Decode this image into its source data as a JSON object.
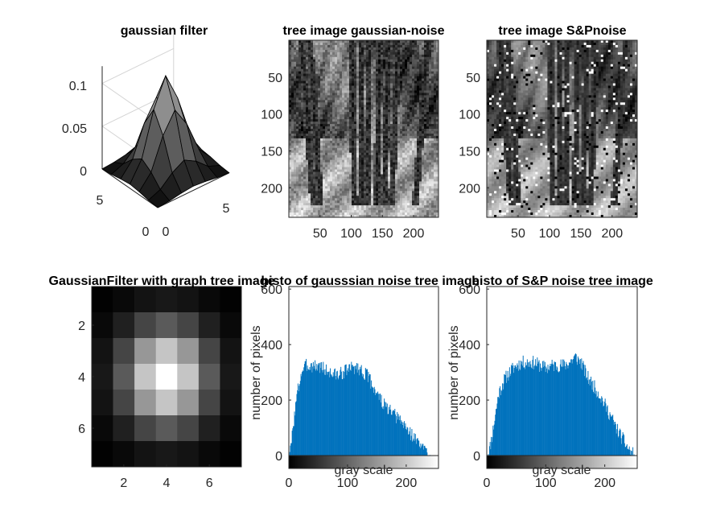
{
  "figure": {
    "background": "#ffffff",
    "axis_color": "#262626",
    "bar_color": "#0072bd"
  },
  "chart_data": [
    {
      "type": "surface",
      "title": "gaussian filter",
      "z_ticks": [
        "0",
        "0.05",
        "0.1"
      ],
      "x_ticks": [
        "5"
      ],
      "y_ticks": [
        "0",
        "5"
      ],
      "x_origin_label": "0",
      "zlim": [
        0,
        0.12
      ],
      "kernel_size": 7,
      "sigma": 1.2
    },
    {
      "type": "image",
      "title": "tree image gaussian-noise",
      "x_ticks": [
        "50",
        "100",
        "150",
        "200"
      ],
      "y_ticks": [
        "50",
        "100",
        "150",
        "200"
      ],
      "xlim": [
        0,
        240
      ],
      "ylim": [
        0,
        240
      ]
    },
    {
      "type": "image",
      "title": "tree image S&Pnoise",
      "x_ticks": [
        "50",
        "100",
        "150",
        "200"
      ],
      "y_ticks": [
        "50",
        "100",
        "150",
        "200"
      ],
      "xlim": [
        0,
        240
      ],
      "ylim": [
        0,
        240
      ]
    },
    {
      "type": "heatmap",
      "title": "GaussianFilter with graph tree image",
      "x_ticks": [
        "2",
        "4",
        "6"
      ],
      "y_ticks": [
        "2",
        "4",
        "6"
      ],
      "size": 7,
      "sigma": 1.2
    },
    {
      "type": "bar",
      "title": "histo of gausssian noise tree image",
      "xlabel": "gray scale",
      "ylabel": "number of pixels",
      "x_ticks": [
        "0",
        "100",
        "200"
      ],
      "y_ticks": [
        "0",
        "200",
        "400",
        "600"
      ],
      "xlim": [
        0,
        255
      ],
      "ylim": [
        0,
        620
      ],
      "bins": 255,
      "envelope": [
        [
          0,
          0
        ],
        [
          3,
          20
        ],
        [
          8,
          120
        ],
        [
          15,
          230
        ],
        [
          22,
          300
        ],
        [
          30,
          320
        ],
        [
          40,
          320
        ],
        [
          55,
          315
        ],
        [
          65,
          300
        ],
        [
          75,
          290
        ],
        [
          85,
          285
        ],
        [
          95,
          300
        ],
        [
          105,
          310
        ],
        [
          115,
          315
        ],
        [
          125,
          300
        ],
        [
          135,
          280
        ],
        [
          145,
          240
        ],
        [
          160,
          185
        ],
        [
          175,
          150
        ],
        [
          190,
          125
        ],
        [
          205,
          85
        ],
        [
          215,
          60
        ],
        [
          225,
          35
        ],
        [
          235,
          12
        ],
        [
          242,
          0
        ],
        [
          255,
          0
        ]
      ],
      "colorbar": true
    },
    {
      "type": "bar",
      "title": "histo of S&P noise  tree image",
      "xlabel": "gray scale",
      "ylabel": "number of pixels",
      "x_ticks": [
        "0",
        "100",
        "200"
      ],
      "y_ticks": [
        "0",
        "200",
        "400",
        "600"
      ],
      "xlim": [
        0,
        255
      ],
      "ylim": [
        0,
        620
      ],
      "bins": 255,
      "envelope": [
        [
          0,
          0
        ],
        [
          5,
          25
        ],
        [
          12,
          110
        ],
        [
          20,
          220
        ],
        [
          30,
          270
        ],
        [
          40,
          300
        ],
        [
          50,
          320
        ],
        [
          60,
          330
        ],
        [
          70,
          330
        ],
        [
          80,
          330
        ],
        [
          90,
          320
        ],
        [
          100,
          310
        ],
        [
          110,
          320
        ],
        [
          120,
          320
        ],
        [
          130,
          320
        ],
        [
          140,
          330
        ],
        [
          150,
          350
        ],
        [
          160,
          330
        ],
        [
          170,
          280
        ],
        [
          180,
          250
        ],
        [
          190,
          220
        ],
        [
          200,
          180
        ],
        [
          210,
          140
        ],
        [
          220,
          95
        ],
        [
          230,
          60
        ],
        [
          238,
          30
        ],
        [
          245,
          10
        ],
        [
          250,
          0
        ],
        [
          255,
          0
        ]
      ],
      "colorbar": true
    }
  ]
}
